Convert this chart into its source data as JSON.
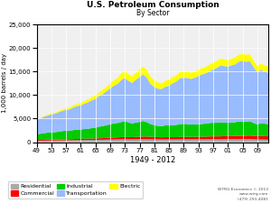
{
  "title": "U.S. Petroleum Consumption",
  "subtitle": "By Sector",
  "xlabel": "1949 - 2012",
  "ylabel": "1,000 barrels / day",
  "years": [
    1949,
    1950,
    1951,
    1952,
    1953,
    1954,
    1955,
    1956,
    1957,
    1958,
    1959,
    1960,
    1961,
    1962,
    1963,
    1964,
    1965,
    1966,
    1967,
    1968,
    1969,
    1970,
    1971,
    1972,
    1973,
    1974,
    1975,
    1976,
    1977,
    1978,
    1979,
    1980,
    1981,
    1982,
    1983,
    1984,
    1985,
    1986,
    1987,
    1988,
    1989,
    1990,
    1991,
    1992,
    1993,
    1994,
    1995,
    1996,
    1997,
    1998,
    1999,
    2000,
    2001,
    2002,
    2003,
    2004,
    2005,
    2006,
    2007,
    2008,
    2009,
    2010,
    2011,
    2012
  ],
  "residential": [
    300,
    310,
    320,
    330,
    340,
    350,
    360,
    370,
    380,
    390,
    400,
    420,
    430,
    440,
    450,
    460,
    470,
    490,
    500,
    520,
    540,
    560,
    570,
    590,
    600,
    590,
    580,
    590,
    600,
    610,
    610,
    590,
    570,
    560,
    550,
    560,
    560,
    560,
    560,
    580,
    590,
    590,
    580,
    590,
    590,
    600,
    600,
    610,
    610,
    600,
    600,
    610,
    620,
    620,
    630,
    640,
    630,
    630,
    640,
    590,
    550,
    560,
    540,
    520
  ],
  "commercial": [
    150,
    160,
    170,
    180,
    190,
    200,
    210,
    220,
    230,
    240,
    250,
    260,
    270,
    280,
    290,
    300,
    310,
    330,
    350,
    370,
    390,
    420,
    440,
    470,
    500,
    490,
    480,
    510,
    540,
    570,
    570,
    540,
    510,
    490,
    480,
    490,
    490,
    490,
    490,
    510,
    530,
    530,
    530,
    540,
    540,
    560,
    570,
    590,
    600,
    610,
    620,
    640,
    650,
    670,
    680,
    700,
    720,
    740,
    750,
    730,
    710,
    740,
    720,
    700
  ],
  "industrial": [
    1200,
    1300,
    1400,
    1500,
    1550,
    1560,
    1650,
    1750,
    1800,
    1820,
    1900,
    1950,
    1980,
    2050,
    2100,
    2200,
    2300,
    2450,
    2550,
    2700,
    2850,
    2980,
    3050,
    3200,
    3350,
    3100,
    2900,
    3050,
    3150,
    3300,
    3050,
    2700,
    2500,
    2400,
    2350,
    2500,
    2500,
    2550,
    2600,
    2750,
    2750,
    2700,
    2600,
    2650,
    2650,
    2700,
    2750,
    2850,
    2900,
    2950,
    3000,
    2900,
    2850,
    2900,
    2900,
    3050,
    3050,
    3000,
    3050,
    2750,
    2500,
    2700,
    2650,
    2600
  ],
  "transportation": [
    3000,
    3200,
    3500,
    3600,
    3800,
    3900,
    4100,
    4300,
    4400,
    4500,
    4800,
    5000,
    5100,
    5400,
    5600,
    5900,
    6100,
    6500,
    6800,
    7200,
    7600,
    8000,
    8300,
    8900,
    9200,
    8800,
    8600,
    9100,
    9500,
    9900,
    9400,
    8500,
    8100,
    7900,
    7900,
    8200,
    8400,
    8900,
    9200,
    9700,
    9800,
    9800,
    9700,
    9900,
    10200,
    10500,
    10700,
    11000,
    11300,
    11600,
    12000,
    12000,
    11900,
    12100,
    12300,
    12700,
    12800,
    12700,
    12700,
    11900,
    11100,
    11300,
    11100,
    10900
  ],
  "electric": [
    100,
    120,
    150,
    180,
    200,
    230,
    260,
    300,
    340,
    380,
    420,
    460,
    500,
    550,
    600,
    660,
    720,
    800,
    870,
    960,
    1060,
    1150,
    1230,
    1380,
    1500,
    1430,
    1350,
    1450,
    1550,
    1650,
    1600,
    1500,
    1380,
    1280,
    1200,
    1280,
    1280,
    1300,
    1320,
    1380,
    1380,
    1350,
    1300,
    1320,
    1320,
    1350,
    1350,
    1400,
    1420,
    1450,
    1500,
    1450,
    1400,
    1420,
    1450,
    1500,
    1500,
    1480,
    1500,
    1350,
    1250,
    1350,
    1300,
    1250
  ],
  "colors": {
    "residential": "#aaaaaa",
    "commercial": "#ff0000",
    "industrial": "#00cc00",
    "transportation": "#99bbff",
    "electric": "#ffff00"
  },
  "ylim": [
    0,
    25000
  ],
  "yticks": [
    0,
    5000,
    10000,
    15000,
    20000,
    25000
  ],
  "bg_color": "#f0f0f0",
  "watermark_line1": "WTRG Economics © 2013",
  "watermark_line2": "www.wtrg.com",
  "watermark_line3": "(479) 293-4081"
}
